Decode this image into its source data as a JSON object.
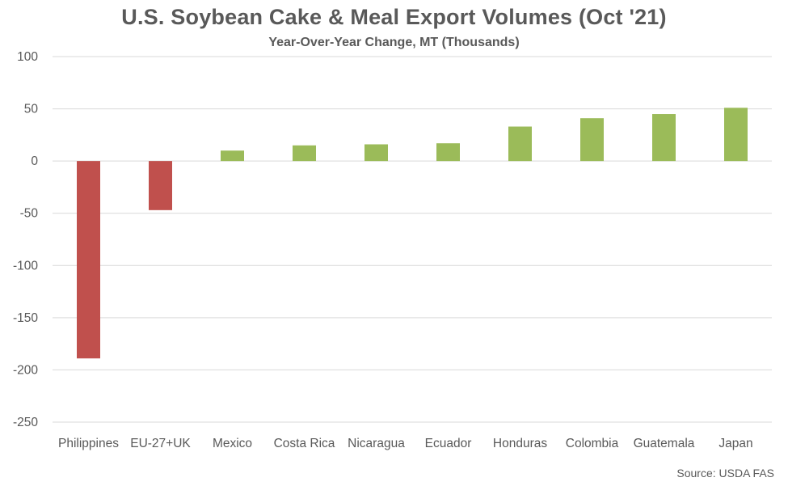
{
  "chart_data": {
    "type": "bar",
    "title": "U.S. Soybean Cake & Meal Export Volumes (Oct '21)",
    "subtitle": "Year-Over-Year Change, MT (Thousands)",
    "categories": [
      "Philippines",
      "EU-27+UK",
      "Mexico",
      "Costa Rica",
      "Nicaragua",
      "Ecuador",
      "Honduras",
      "Colombia",
      "Guatemala",
      "Japan"
    ],
    "values": [
      -189,
      -47,
      10,
      15,
      16,
      17,
      33,
      41,
      45,
      51
    ],
    "ylim": [
      -250,
      100
    ],
    "yticks": [
      100,
      50,
      0,
      -50,
      -100,
      -150,
      -200,
      -250
    ],
    "xlabel": "",
    "ylabel": "",
    "grid": true,
    "colors": {
      "positive": "#9bbb59",
      "negative": "#c0504d",
      "grid": "#d9d9d9",
      "text": "#595959"
    },
    "source": "Source: USDA FAS"
  }
}
